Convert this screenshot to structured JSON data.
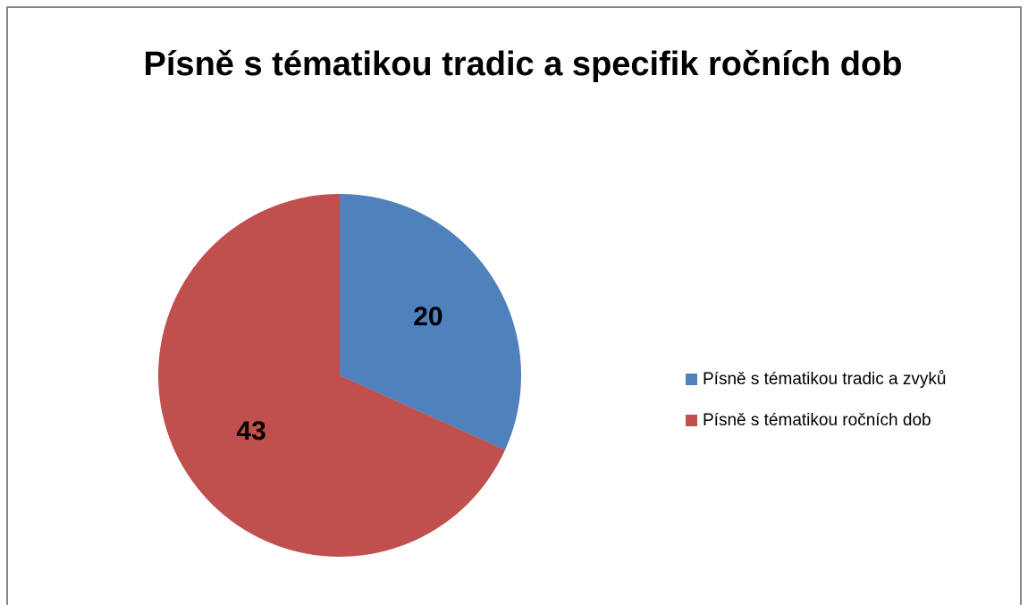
{
  "chart_data": {
    "type": "pie",
    "title": "Písně s tématikou tradic a specifik ročních dob",
    "categories": [
      "Písně s tématikou tradic a zvyků",
      "Písně s tématikou ročních dob"
    ],
    "values": [
      20,
      43
    ],
    "colors": [
      "#4f81bd",
      "#c0504d"
    ],
    "legend": "right"
  }
}
